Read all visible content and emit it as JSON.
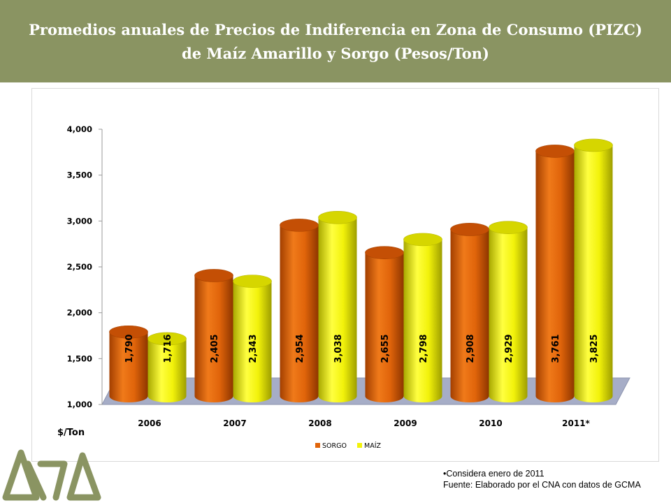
{
  "header": {
    "title_line1": "Promedios anuales de Precios de Indiferencia en Zona de Consumo (PIZC)",
    "title_line2": "de Maíz Amarillo y Sorgo (Pesos/Ton)",
    "background": "#8a9462"
  },
  "chart_data": {
    "type": "bar",
    "style": "3d-cylinder",
    "categories": [
      "2006",
      "2007",
      "2008",
      "2009",
      "2010",
      "2011*"
    ],
    "series": [
      {
        "name": "SORGO",
        "color": "#e0640a",
        "values": [
          1790,
          2405,
          2954,
          2655,
          2908,
          3761
        ],
        "labels": [
          "1,790",
          "2,405",
          "2,954",
          "2,655",
          "2,908",
          "3,761"
        ]
      },
      {
        "name": "MAÍZ",
        "color": "#f2f20a",
        "values": [
          1716,
          2343,
          3038,
          2798,
          2929,
          3825
        ],
        "labels": [
          "1,716",
          "2,343",
          "3,038",
          "2,798",
          "2,929",
          "3,825"
        ]
      }
    ],
    "ylim": [
      1000,
      4000
    ],
    "yticks": [
      "1,000",
      "1,500",
      "2,000",
      "2,500",
      "3,000",
      "3,500",
      "4,000"
    ],
    "ylabel": "$/Ton",
    "xlabel": "",
    "legend_position": "bottom",
    "grid": false
  },
  "footnote": {
    "line1": "•Considera enero de 2011",
    "line2": "Fuente: Elaborado por el CNA con datos de GCMA"
  },
  "logo": {
    "color": "#8a9462"
  }
}
